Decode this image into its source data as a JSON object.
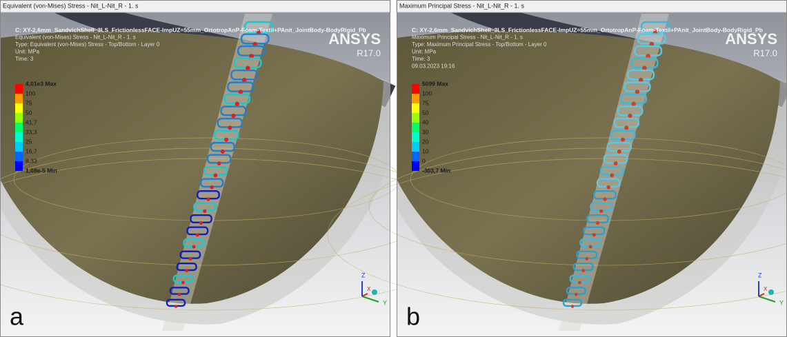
{
  "panels": [
    {
      "title": "Equivalent (von-Mises) Stress - Nit_L-Nit_R - 1. s",
      "header": [
        "C: XY-2,6mm_SandvichShell_3LS_FrictionlessFACE-ImpUZ=55mm_OrtotropAnP-Foam-Textil+PAnit_JointBody-BodyRigid_Pb",
        "Equivalent (von-Mises) Stress - Nit_L-Nit_R - 1. s",
        "Type: Equivalent (von-Mises) Stress - Top/Bottom - Layer 0",
        "Unit: MPa",
        "Time: 3"
      ],
      "legend_labels": [
        "4,01e3 Max",
        "100",
        "75",
        "50",
        "41,7",
        "33,3",
        "25",
        "16,7",
        "8,33",
        "1,08e-5 Min"
      ],
      "legend_colors": [
        "#ff0000",
        "#ff9900",
        "#ffff00",
        "#99ff00",
        "#00ff66",
        "#00ffcc",
        "#00ccff",
        "#0066ff",
        "#0000ff"
      ],
      "logo": "ANSYS",
      "version": "R17.0",
      "label": "a",
      "axes": [
        "Z",
        "X",
        "Y"
      ]
    },
    {
      "title": "Maximum Principal Stress - Nit_L-Nit_R - 1. s",
      "header": [
        "C: XY-2,6mm_SandvichShell_3LS_FrictionlessFACE-ImpUZ=55mm_OrtotropAnP-Foam-Textil+PAnit_JointBody-BodyRigid_Pb",
        "Maximum Principal Stress - Nit_L-Nit_R - 1. s",
        "Type: Maximum Principal Stress - Top/Bottom - Layer 0",
        "Unit: MPa",
        "Time: 3",
        "09.03.2023 19:16"
      ],
      "legend_labels": [
        "5099 Max",
        "100",
        "75",
        "50",
        "40",
        "30",
        "20",
        "10",
        "0",
        "-303,7 Min"
      ],
      "legend_colors": [
        "#ff0000",
        "#ff9900",
        "#ffff00",
        "#99ff00",
        "#00ff66",
        "#00ffcc",
        "#00ccff",
        "#0066ff",
        "#0000ff"
      ],
      "logo": "ANSYS",
      "version": "R17.0",
      "label": "b",
      "axes": [
        "Z",
        "X",
        "Y"
      ]
    }
  ]
}
